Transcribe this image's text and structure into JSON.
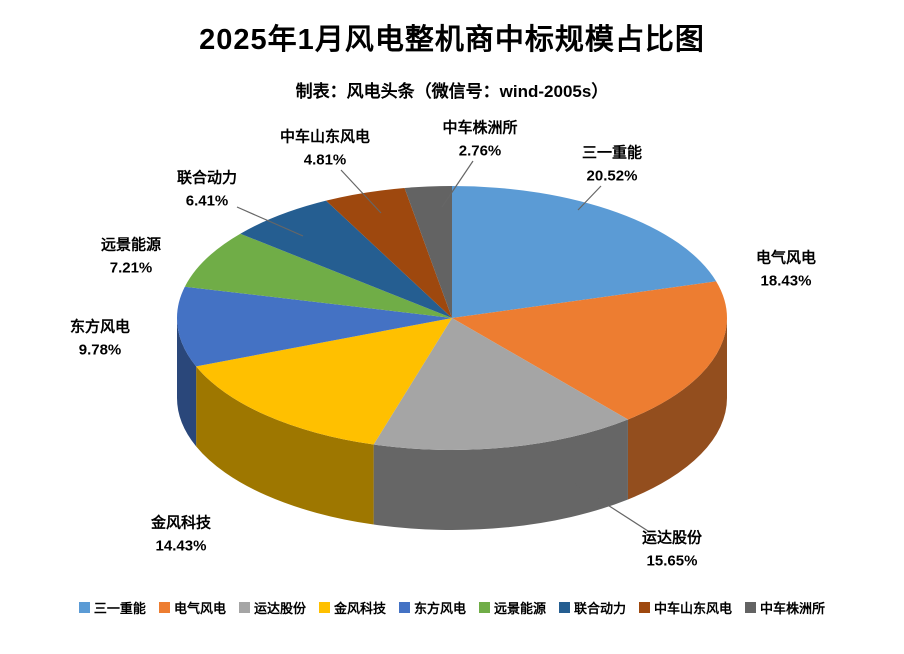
{
  "page": {
    "title": "2025年1月风电整机商中标规模占比图",
    "subtitle": "制表：风电头条（微信号：wind-2005s）"
  },
  "chart_data": {
    "type": "pie",
    "style": "3d",
    "title": "2025年1月风电整机商中标规模占比图",
    "subtitle": "制表：风电头条（微信号：wind-2005s）",
    "start_angle_deg": -90,
    "direction": "clockwise",
    "unit": "%",
    "legend_position": "bottom",
    "categories": [
      "三一重能",
      "电气风电",
      "运达股份",
      "金风科技",
      "东方风电",
      "远景能源",
      "联合动力",
      "中车山东风电",
      "中车株洲所"
    ],
    "values": [
      20.52,
      18.43,
      15.65,
      14.43,
      9.78,
      7.21,
      6.41,
      4.81,
      2.76
    ],
    "labels": [
      "20.52%",
      "18.43%",
      "15.65%",
      "14.43%",
      "9.78%",
      "7.21%",
      "6.41%",
      "4.81%",
      "2.76%"
    ],
    "colors": [
      "#5B9BD5",
      "#ED7D31",
      "#A5A5A5",
      "#FFC000",
      "#4472C4",
      "#70AD47",
      "#255E91",
      "#9E480E",
      "#636363"
    ]
  }
}
